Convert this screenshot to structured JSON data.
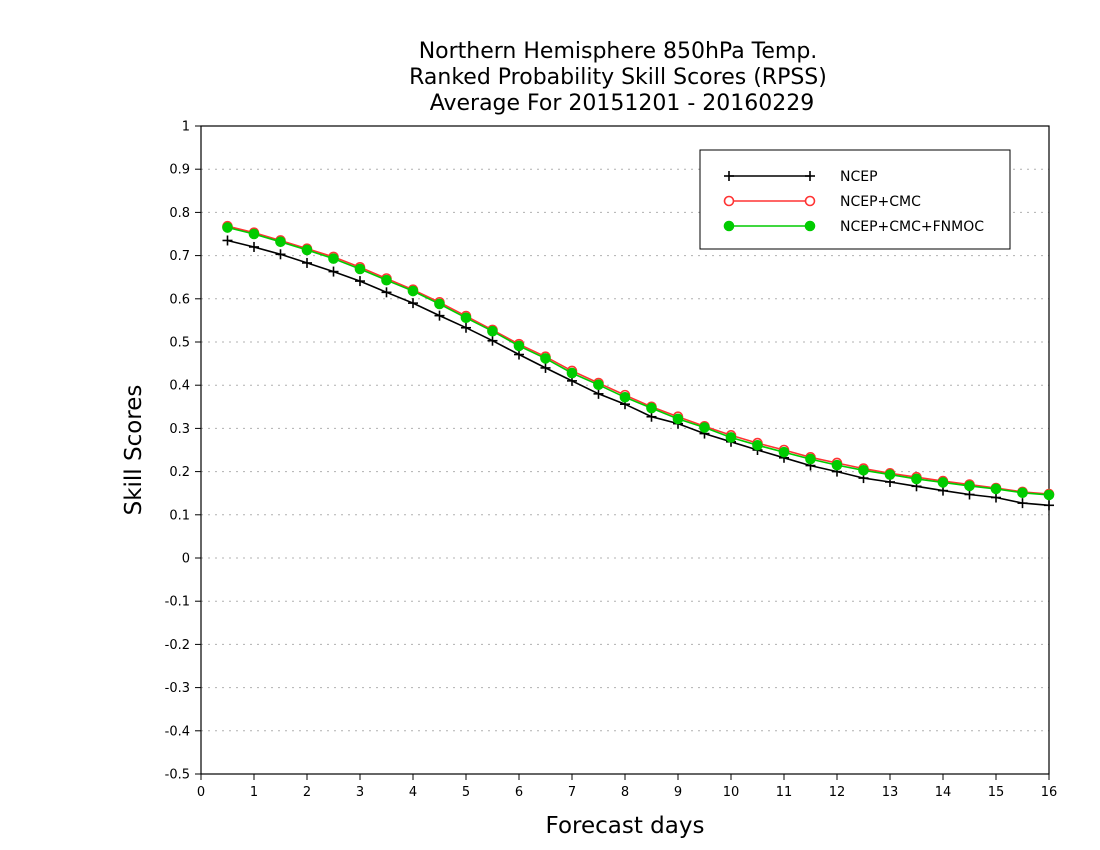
{
  "chart_data": {
    "type": "line",
    "title_lines": [
      "Northern Hemisphere 850hPa Temp.",
      "Ranked Probability Skill Scores (RPSS)",
      "Average For 20151201 - 20160229"
    ],
    "xlabel": "Forecast days",
    "ylabel": "Skill Scores",
    "xlim": [
      0,
      16
    ],
    "ylim": [
      -0.5,
      1
    ],
    "x_ticks": [
      "0",
      "1",
      "2",
      "3",
      "4",
      "5",
      "6",
      "7",
      "8",
      "9",
      "10",
      "11",
      "12",
      "13",
      "14",
      "15",
      "16"
    ],
    "y_ticks": [
      "1",
      "0.9",
      "0.8",
      "0.7",
      "0.6",
      "0.5",
      "0.4",
      "0.3",
      "0.2",
      "0.1",
      "0",
      "-0.1",
      "-0.2",
      "-0.3",
      "-0.4",
      "-0.5"
    ],
    "grid": "horizontal dotted",
    "legend_position": "top-right",
    "x": [
      0.5,
      1,
      1.5,
      2,
      2.5,
      3,
      3.5,
      4,
      4.5,
      5,
      5.5,
      6,
      6.5,
      7,
      7.5,
      8,
      8.5,
      9,
      9.5,
      10,
      10.5,
      11,
      11.5,
      12,
      12.5,
      13,
      13.5,
      14,
      14.5,
      15,
      15.5,
      16
    ],
    "series": [
      {
        "name": "NCEP",
        "color": "#000000",
        "marker": "plus",
        "values": [
          0.735,
          0.72,
          0.703,
          0.683,
          0.663,
          0.641,
          0.615,
          0.59,
          0.561,
          0.533,
          0.503,
          0.471,
          0.44,
          0.41,
          0.38,
          0.356,
          0.327,
          0.311,
          0.288,
          0.269,
          0.25,
          0.232,
          0.214,
          0.2,
          0.185,
          0.176,
          0.166,
          0.156,
          0.147,
          0.14,
          0.127,
          0.122
        ]
      },
      {
        "name": "NCEP+CMC",
        "color": "#ff3333",
        "marker": "open-circle",
        "values": [
          0.768,
          0.753,
          0.735,
          0.716,
          0.697,
          0.673,
          0.647,
          0.621,
          0.592,
          0.56,
          0.528,
          0.495,
          0.466,
          0.433,
          0.405,
          0.377,
          0.35,
          0.327,
          0.305,
          0.284,
          0.266,
          0.25,
          0.233,
          0.22,
          0.207,
          0.196,
          0.187,
          0.178,
          0.17,
          0.162,
          0.153,
          0.148
        ]
      },
      {
        "name": "NCEP+CMC+FNMOC",
        "color": "#00cc00",
        "marker": "filled-circle",
        "values": [
          0.765,
          0.75,
          0.732,
          0.713,
          0.693,
          0.669,
          0.643,
          0.618,
          0.588,
          0.556,
          0.525,
          0.491,
          0.462,
          0.428,
          0.401,
          0.372,
          0.347,
          0.322,
          0.302,
          0.279,
          0.261,
          0.245,
          0.229,
          0.215,
          0.203,
          0.193,
          0.183,
          0.175,
          0.167,
          0.16,
          0.151,
          0.146
        ]
      }
    ]
  }
}
